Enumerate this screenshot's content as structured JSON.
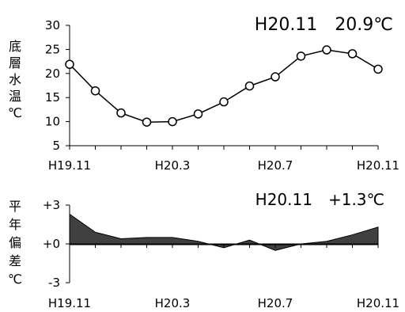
{
  "chart_data": [
    {
      "type": "line",
      "annotation": "H20.11　20.9℃",
      "ylabel_chars": [
        "底",
        "層",
        "水",
        "温",
        "℃"
      ],
      "ylim": [
        5,
        30
      ],
      "yticks": [
        5,
        10,
        15,
        20,
        25,
        30
      ],
      "xtick_labels": [
        "H19.11",
        "H20.3",
        "H20.7",
        "H20.11"
      ],
      "xtick_label_index": [
        0,
        4,
        8,
        12
      ],
      "series": [
        {
          "x": [
            "H19.11",
            "H19.12",
            "H20.1",
            "H20.2",
            "H20.3",
            "H20.4",
            "H20.5",
            "H20.6",
            "H20.7",
            "H20.8",
            "H20.9",
            "H20.10",
            "H20.11"
          ],
          "values": [
            21.9,
            16.4,
            11.8,
            9.9,
            10.0,
            11.6,
            14.1,
            17.4,
            19.3,
            23.6,
            24.9,
            24.1,
            20.9
          ]
        }
      ],
      "marker": "open-circle",
      "grid": false
    },
    {
      "type": "area",
      "annotation": "H20.11　+1.3℃",
      "ylabel_chars": [
        "平",
        "年",
        "偏",
        "差",
        "℃"
      ],
      "ylim": [
        -3,
        3
      ],
      "yticks": [
        3,
        0,
        -3
      ],
      "ytick_labels": [
        "+3",
        "+0",
        "-3"
      ],
      "xtick_labels": [
        "H19.11",
        "H20.3",
        "H20.7",
        "H20.11"
      ],
      "xtick_label_index": [
        0,
        4,
        8,
        12
      ],
      "series": [
        {
          "x": [
            "H19.11",
            "H19.12",
            "H20.1",
            "H20.2",
            "H20.3",
            "H20.4",
            "H20.5",
            "H20.6",
            "H20.7",
            "H20.8",
            "H20.9",
            "H20.10",
            "H20.11"
          ],
          "values": [
            2.3,
            0.9,
            0.4,
            0.5,
            0.5,
            0.2,
            -0.3,
            0.3,
            -0.5,
            0.0,
            0.2,
            0.7,
            1.3
          ]
        }
      ],
      "fill_color": "#404040",
      "grid": false
    }
  ]
}
